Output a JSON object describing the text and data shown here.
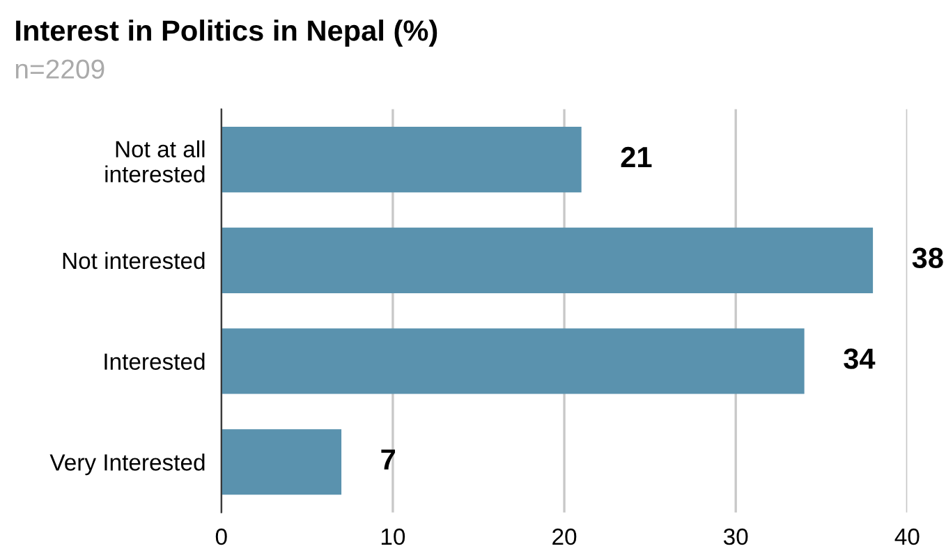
{
  "chart_data": {
    "type": "bar",
    "orientation": "horizontal",
    "title": "Interest in Politics in Nepal (%)",
    "subtitle": "n=2209",
    "categories": [
      "Not at all\ninterested",
      "Not interested",
      "Interested",
      "Very Interested"
    ],
    "values": [
      21,
      38,
      34,
      7
    ],
    "color": "#5a92ae",
    "xlim": [
      0,
      40
    ],
    "xticks": [
      0,
      10,
      20,
      30,
      40
    ],
    "grid": "x",
    "data_labels": true
  }
}
